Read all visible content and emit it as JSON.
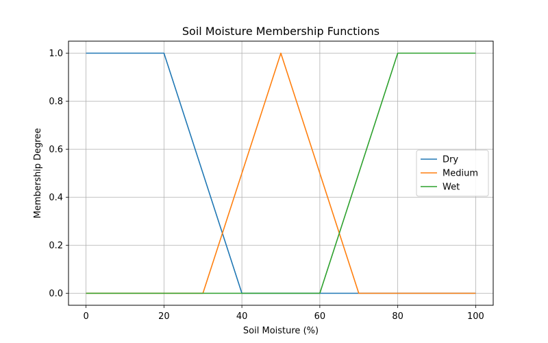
{
  "chart_data": {
    "type": "line",
    "title": "Soil Moisture Membership Functions",
    "xlabel": "Soil Moisture (%)",
    "ylabel": "Membership Degree",
    "xlim": [
      -4.5,
      104.5
    ],
    "ylim": [
      -0.05,
      1.05
    ],
    "xticks": [
      0,
      20,
      40,
      60,
      80,
      100
    ],
    "yticks": [
      0.0,
      0.2,
      0.4,
      0.6,
      0.8,
      1.0
    ],
    "xtick_labels": [
      "0",
      "20",
      "40",
      "60",
      "80",
      "100"
    ],
    "ytick_labels": [
      "0.0",
      "0.2",
      "0.4",
      "0.6",
      "0.8",
      "1.0"
    ],
    "grid": true,
    "legend_position": "center-right",
    "series": [
      {
        "name": "Dry",
        "color": "#1f77b4",
        "x": [
          0,
          20,
          40,
          100
        ],
        "y": [
          1,
          1,
          0,
          0
        ]
      },
      {
        "name": "Medium",
        "color": "#ff7f0e",
        "x": [
          0,
          30,
          50,
          70,
          100
        ],
        "y": [
          0,
          0,
          1,
          0,
          0
        ]
      },
      {
        "name": "Wet",
        "color": "#2ca02c",
        "x": [
          0,
          60,
          80,
          100
        ],
        "y": [
          0,
          0,
          1,
          1
        ]
      }
    ]
  }
}
